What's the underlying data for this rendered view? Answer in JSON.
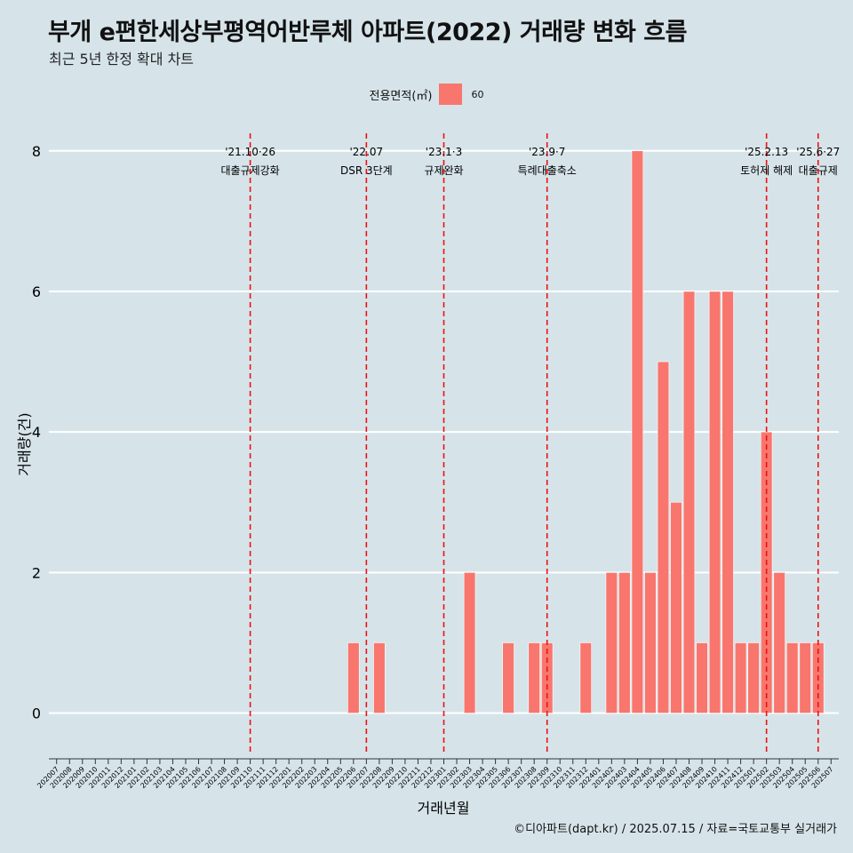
{
  "title": "부개 e편한세상부평역어반루체 아파트(2022) 거래량 변화 흐름",
  "subtitle": "최근 5년 한정 확대 차트",
  "caption": "©디아파트(dapt.kr) / 2025.07.15 / 자료=국토교통부 실거래가",
  "legend": {
    "title": "전용면적(㎡)",
    "label": "60"
  },
  "colors": {
    "background": "#d6e4ea",
    "bar": "#f8766d",
    "event_line": "#ee1111",
    "grid": "#ffffff"
  },
  "chart_data": {
    "type": "bar",
    "xlabel": "거래년월",
    "ylabel": "거래량(건)",
    "ylim": [
      -0.6,
      8.25
    ],
    "y_ticks": [
      0,
      2,
      4,
      6,
      8
    ],
    "grid": "horizontal major",
    "legend_position": "top",
    "categories": [
      "202007",
      "202008",
      "202009",
      "202010",
      "202011",
      "202012",
      "202101",
      "202102",
      "202103",
      "202104",
      "202105",
      "202106",
      "202107",
      "202108",
      "202109",
      "202110",
      "202111",
      "202112",
      "202201",
      "202202",
      "202203",
      "202204",
      "202205",
      "202206",
      "202207",
      "202208",
      "202209",
      "202210",
      "202211",
      "202212",
      "202301",
      "202302",
      "202303",
      "202304",
      "202305",
      "202306",
      "202307",
      "202308",
      "202309",
      "202310",
      "202311",
      "202312",
      "202401",
      "202402",
      "202403",
      "202404",
      "202405",
      "202406",
      "202407",
      "202408",
      "202409",
      "202410",
      "202411",
      "202412",
      "202501",
      "202502",
      "202503",
      "202504",
      "202505",
      "202506",
      "202507"
    ],
    "series": [
      {
        "name": "60",
        "values": [
          0,
          0,
          0,
          0,
          0,
          0,
          0,
          0,
          0,
          0,
          0,
          0,
          0,
          0,
          0,
          0,
          0,
          0,
          0,
          0,
          0,
          0,
          0,
          1,
          0,
          1,
          0,
          0,
          0,
          0,
          0,
          0,
          2,
          0,
          0,
          1,
          0,
          1,
          1,
          0,
          0,
          1,
          0,
          2,
          2,
          8,
          2,
          5,
          3,
          6,
          1,
          6,
          6,
          1,
          1,
          4,
          2,
          1,
          1,
          1,
          0
        ]
      }
    ],
    "events": [
      {
        "date": "'21.10·26",
        "label": "대출규제강화",
        "x": "202110"
      },
      {
        "date": "'22.07",
        "label": "DSR 3단계",
        "x": "202207"
      },
      {
        "date": "'23.1·3",
        "label": "규제완화",
        "x": "202301"
      },
      {
        "date": "'23.9·7",
        "label": "특례대출축소",
        "x": "202309"
      },
      {
        "date": "'25.2.13",
        "label": "토허제 해제",
        "x": "202502"
      },
      {
        "date": "'25.6·27",
        "label": "대출규제",
        "x": "202506"
      }
    ]
  }
}
